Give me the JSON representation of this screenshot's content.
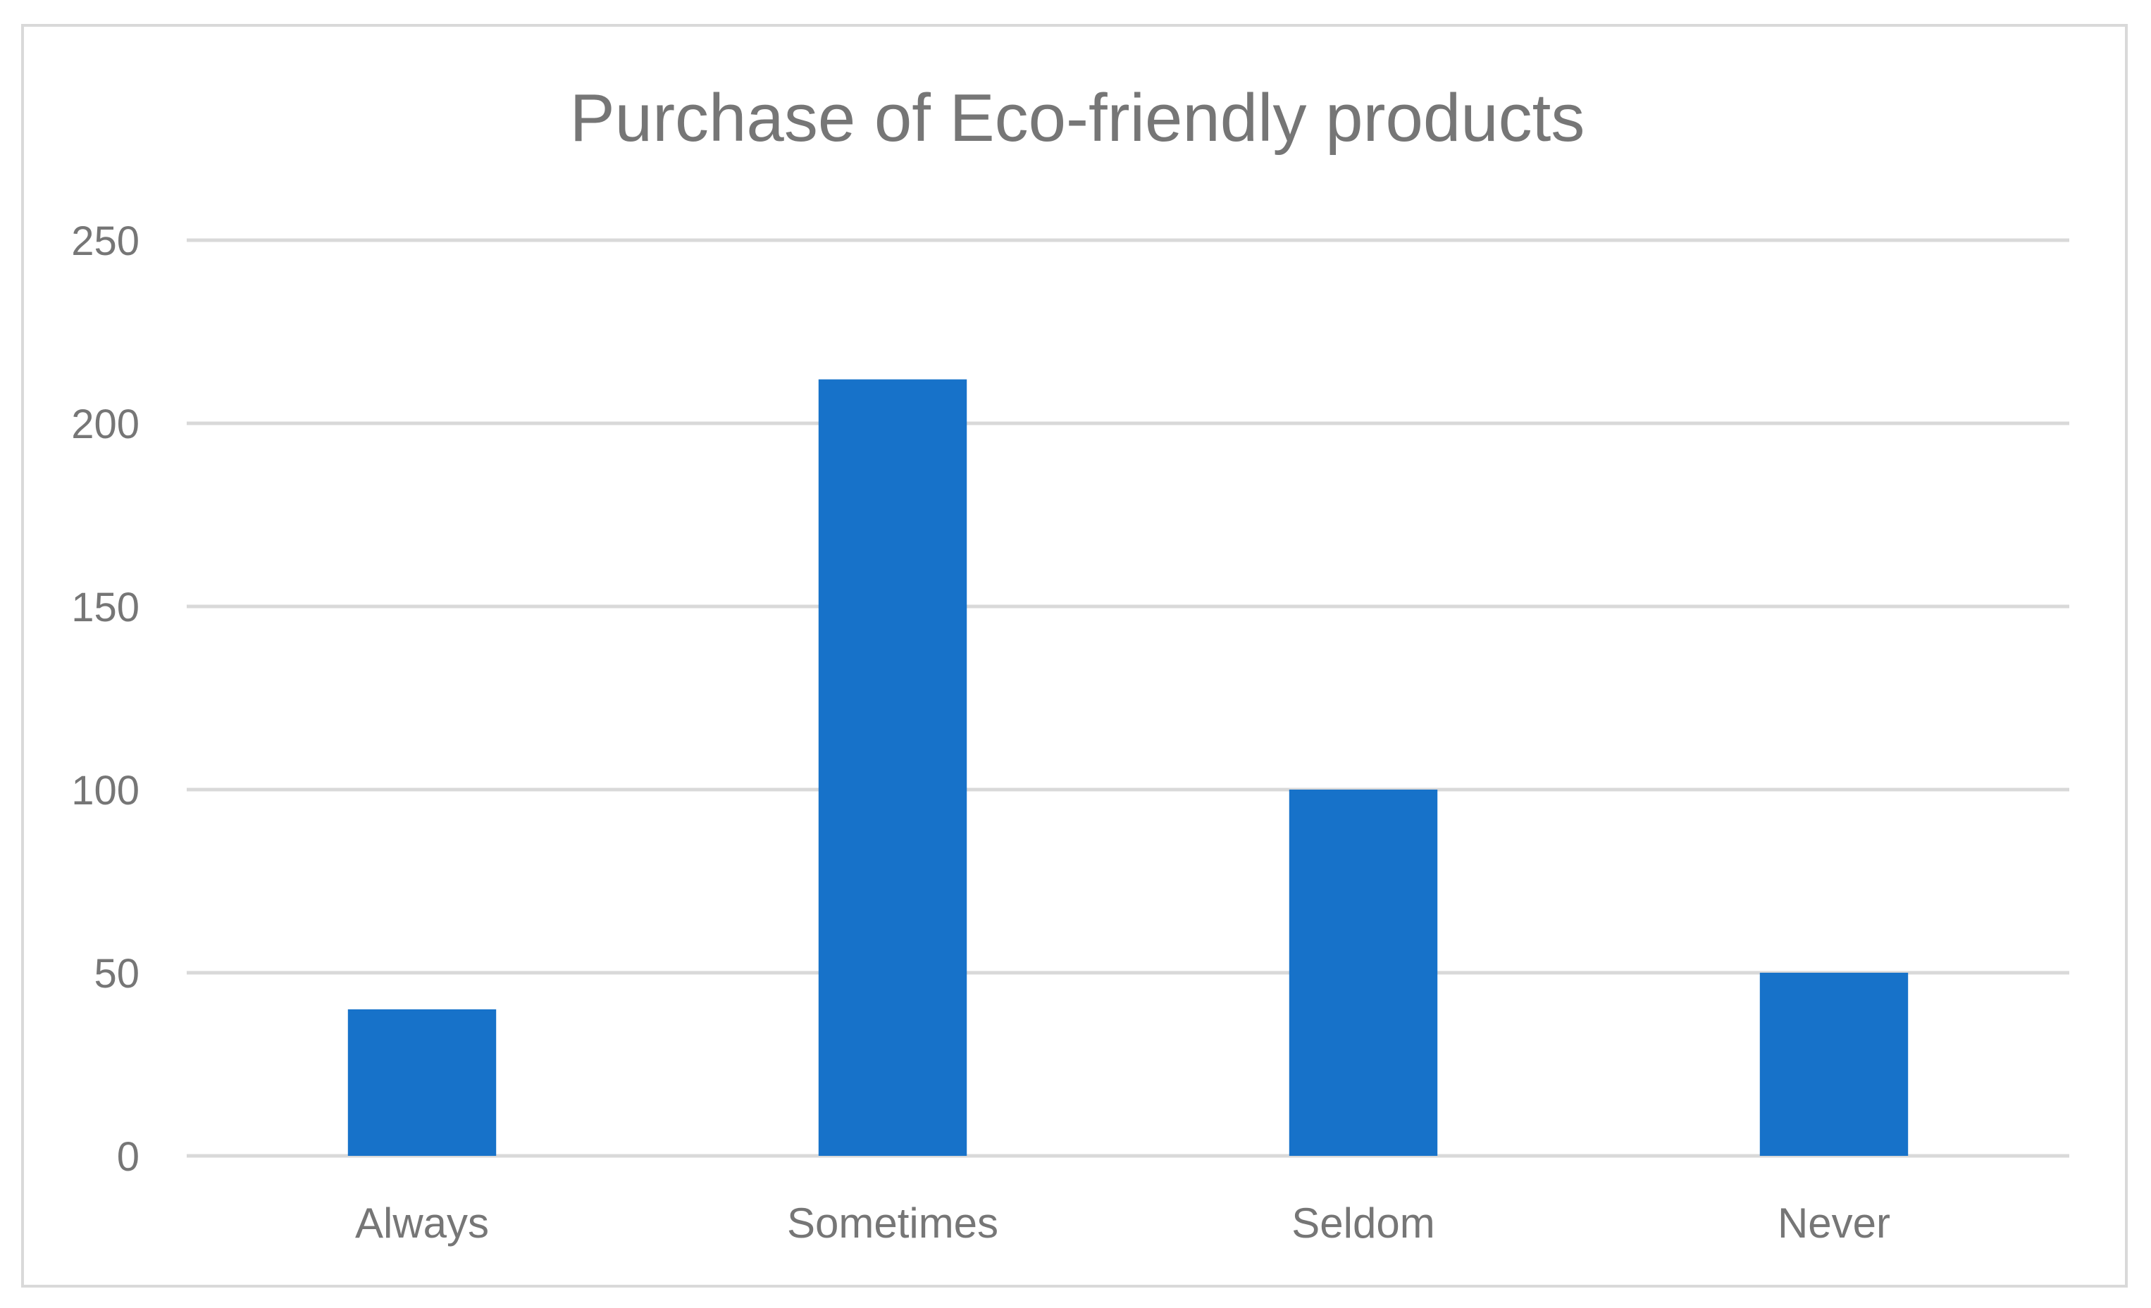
{
  "chart_data": {
    "type": "bar",
    "title": "Purchase of Eco-friendly products",
    "xlabel": "",
    "ylabel": "",
    "categories": [
      "Always",
      "Sometimes",
      "Seldom",
      "Never"
    ],
    "values": [
      40,
      212,
      100,
      50
    ],
    "ylim": [
      0,
      250
    ],
    "yticks": [
      0,
      50,
      100,
      150,
      200,
      250
    ],
    "grid": true,
    "legend": "none",
    "bar_color": "#1772c9",
    "grid_color": "#d9d9d9",
    "text_color": "#767676"
  }
}
